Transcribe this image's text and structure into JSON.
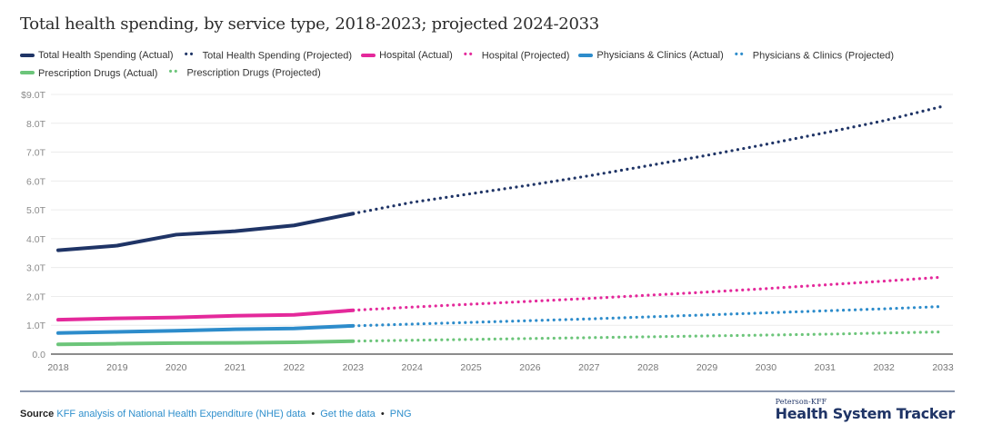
{
  "title": "Total health spending, by service type, 2018-2023; projected 2024-2033",
  "legend": [
    {
      "label": "Total Health Spending (Actual)",
      "series": "total",
      "style": "solid"
    },
    {
      "label": "Total Health Spending (Projected)",
      "series": "total",
      "style": "dotted"
    },
    {
      "label": "Hospital (Actual)",
      "series": "hospital",
      "style": "solid"
    },
    {
      "label": "Hospital (Projected)",
      "series": "hospital",
      "style": "dotted"
    },
    {
      "label": "Physicians & Clinics (Actual)",
      "series": "physicians",
      "style": "solid"
    },
    {
      "label": "Physicians & Clinics (Projected)",
      "series": "physicians",
      "style": "dotted"
    },
    {
      "label": "Prescription Drugs (Actual)",
      "series": "drugs",
      "style": "solid"
    },
    {
      "label": "Prescription Drugs (Projected)",
      "series": "drugs",
      "style": "dotted"
    }
  ],
  "colors": {
    "total": "#1f3466",
    "hospital": "#e4299b",
    "physicians": "#2d8ccb",
    "drugs": "#6cc57a",
    "grid": "#ececec",
    "axis": "#8c8c8c",
    "tick_text": "#8a8a8a"
  },
  "chart_data": {
    "type": "line",
    "title": "Total health spending, by service type, 2018-2023; projected 2024-2033",
    "xlabel": "",
    "ylabel": "",
    "x": [
      2018,
      2019,
      2020,
      2021,
      2022,
      2023,
      2024,
      2025,
      2026,
      2027,
      2028,
      2029,
      2030,
      2031,
      2032,
      2033
    ],
    "actual_through": 2023,
    "ylim": [
      0,
      9
    ],
    "yticks": [
      0,
      1,
      2,
      3,
      4,
      5,
      6,
      7,
      8,
      9
    ],
    "ytick_labels": [
      "0.0",
      "1.0T",
      "2.0T",
      "3.0T",
      "4.0T",
      "5.0T",
      "6.0T",
      "7.0T",
      "8.0T",
      "$9.0T"
    ],
    "xtick_labels": [
      "2018",
      "2019",
      "2020",
      "2021",
      "2022",
      "2023",
      "2024",
      "2025",
      "2026",
      "2027",
      "2028",
      "2029",
      "2030",
      "2031",
      "2032",
      "2033"
    ],
    "grid": true,
    "legend_position": "top-left",
    "units": "trillions USD",
    "series": [
      {
        "key": "total",
        "name": "Total Health Spending",
        "values": [
          3.6,
          3.76,
          4.14,
          4.26,
          4.46,
          4.87,
          5.26,
          5.56,
          5.86,
          6.18,
          6.53,
          6.89,
          7.27,
          7.67,
          8.09,
          8.59
        ]
      },
      {
        "key": "hospital",
        "name": "Hospital",
        "values": [
          1.19,
          1.24,
          1.27,
          1.33,
          1.36,
          1.52,
          1.63,
          1.73,
          1.83,
          1.93,
          2.04,
          2.15,
          2.27,
          2.4,
          2.53,
          2.67
        ]
      },
      {
        "key": "physicians",
        "name": "Physicians & Clinics",
        "values": [
          0.73,
          0.77,
          0.81,
          0.86,
          0.89,
          0.98,
          1.04,
          1.1,
          1.16,
          1.22,
          1.29,
          1.36,
          1.43,
          1.5,
          1.57,
          1.65
        ]
      },
      {
        "key": "drugs",
        "name": "Prescription Drugs",
        "values": [
          0.34,
          0.36,
          0.38,
          0.39,
          0.41,
          0.45,
          0.48,
          0.51,
          0.54,
          0.57,
          0.6,
          0.63,
          0.66,
          0.69,
          0.73,
          0.77
        ]
      }
    ]
  },
  "footer": {
    "source_label": "Source",
    "source_link": "KFF analysis of National Health Expenditure (NHE) data",
    "sep": "•",
    "get_data": "Get the data",
    "png": "PNG"
  },
  "logo": {
    "small": "Peterson-KFF",
    "big": "Health System Tracker"
  }
}
